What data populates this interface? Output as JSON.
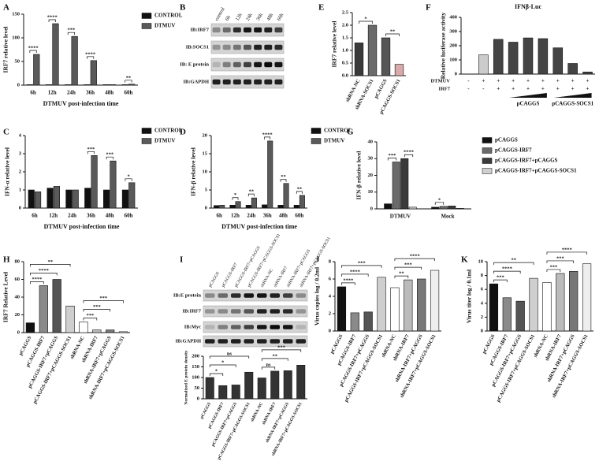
{
  "panel_letters": [
    "A",
    "B",
    "C",
    "D",
    "E",
    "F",
    "G",
    "H",
    "I",
    "J",
    "K"
  ],
  "blots": [
    {
      "columns": [
        "control",
        "6h",
        "12h",
        "24h",
        "36h",
        "48h",
        "60h"
      ],
      "rows": [
        "IB:IRF7",
        "IB:SOCS1",
        "IB: E protein",
        "IB:GAPDH"
      ]
    },
    {
      "columns": [
        "pCAGGS",
        "pCAGGS-IRF7",
        "pCAGGS-IRF7+pCAGGS",
        "pCAGGS-IRF7+pCAGGS-SOCS1",
        "shRNA-NC",
        "shRNA-IRF7",
        "shRNA-IRF7+pCAGGS",
        "shRNA-IRF7+pCAGGS-SOCS1"
      ],
      "rows": [
        "IB:E protein",
        "IB:IRF7",
        "IB:Myc",
        "IB:GAPDH"
      ]
    }
  ],
  "chart_data": [
    {
      "type": "bar",
      "ylabel": "IRF7  relative level",
      "xlabel": "DTMUV post-infection time",
      "categories": [
        "6h",
        "12h",
        "24h",
        "36h",
        "48h",
        "60h"
      ],
      "series": [
        {
          "name": "CONTROL",
          "color": "#111111",
          "values": [
            1,
            1,
            1,
            1,
            1,
            1
          ]
        },
        {
          "name": "DTMUV",
          "color": "#5a5a5a",
          "values": [
            65,
            130,
            103,
            52,
            1,
            2
          ]
        }
      ],
      "ylim": [
        0,
        150
      ],
      "yticks": [
        0,
        50,
        100,
        150
      ],
      "brackets": [
        {
          "text": "****",
          "from": 0,
          "to": 1
        },
        {
          "text": "****",
          "from": 2,
          "to": 3
        },
        {
          "text": "***",
          "from": 4,
          "to": 5
        },
        {
          "text": "****",
          "from": 6,
          "to": 7
        },
        {
          "text": "**",
          "from": 10,
          "to": 11
        }
      ]
    },
    {
      "type": "bar",
      "ylabel": "IRF7 relative level",
      "categories": [
        "shRNA-NC",
        "shRNA-SOCS1",
        "pCAGGS",
        "pCAGGS-SOCS1"
      ],
      "values": [
        1.3,
        2.0,
        1.5,
        0.45
      ],
      "colors": [
        "#3a3a3a",
        "#6a6a6a",
        "#555555",
        "#d8a9a9"
      ],
      "ylim": [
        0,
        2.5
      ],
      "yticks": [
        {
          "value": 0,
          "label": "0.0"
        },
        0.5,
        {
          "value": 1,
          "label": "1.0"
        },
        1.5,
        {
          "value": 2,
          "label": "2.0"
        },
        2.5
      ],
      "brackets": [
        {
          "text": "*",
          "from": 0,
          "to": 1
        },
        {
          "text": "**",
          "from": 2,
          "to": 3
        }
      ]
    },
    {
      "type": "bar",
      "title": "IFNβ-Luc",
      "ylabel": "Relative luciferase activity",
      "values": [
        0,
        135,
        245,
        225,
        255,
        250,
        185,
        75,
        15
      ],
      "colors": [
        "#cccccc",
        "#cccccc",
        "#444444",
        "#444444",
        "#444444",
        "#444444",
        "#444444",
        "#444444",
        "#444444"
      ],
      "ylim": [
        0,
        400
      ],
      "yticks": [
        0,
        100,
        200,
        300,
        400
      ],
      "rows": [
        {
          "name": "DTMUV",
          "signs": [
            "-",
            "+",
            "+",
            "+",
            "+",
            "+",
            "+",
            "+",
            "+"
          ]
        },
        {
          "name": "IRF7",
          "signs": [
            "-",
            "-",
            "+",
            "+",
            "+",
            "+",
            "+",
            "+",
            "+"
          ]
        }
      ],
      "groups": [
        {
          "label": "pCAGGS",
          "from": 3,
          "to": 5
        },
        {
          "label": "pCAGGS-SOCS1",
          "from": 6,
          "to": 8
        }
      ]
    },
    {
      "type": "bar",
      "ylabel": "IFN-α relative level",
      "xlabel": "DTMUV post-infection time",
      "categories": [
        "6h",
        "12h",
        "24h",
        "36h",
        "48h",
        "60h"
      ],
      "series": [
        {
          "name": "CONTROL",
          "color": "#111111",
          "values": [
            1.0,
            1.1,
            1.0,
            1.1,
            1.0,
            1.0
          ]
        },
        {
          "name": "DTMUV",
          "color": "#5a5a5a",
          "values": [
            0.9,
            1.2,
            1.0,
            2.9,
            2.6,
            1.4
          ]
        }
      ],
      "ylim": [
        0,
        4
      ],
      "yticks": [
        0,
        1,
        2,
        3,
        4
      ],
      "brackets": [
        {
          "text": "***",
          "from": 6,
          "to": 7
        },
        {
          "text": "***",
          "from": 8,
          "to": 9
        },
        {
          "text": "*",
          "from": 10,
          "to": 11
        }
      ]
    },
    {
      "type": "bar",
      "ylabel": "IFN-β relative level",
      "xlabel": "DTMUV post-infection time",
      "categories": [
        "6h",
        "12h",
        "24h",
        "36h",
        "48h",
        "60h"
      ],
      "series": [
        {
          "name": "CONTROL",
          "color": "#111111",
          "values": [
            0.7,
            0.8,
            0.8,
            0.9,
            0.8,
            0.8
          ]
        },
        {
          "name": "DTMUV",
          "color": "#5a5a5a",
          "values": [
            0.8,
            1.8,
            2.8,
            18.5,
            6.8,
            3.5
          ]
        }
      ],
      "ylim": [
        0,
        20
      ],
      "yticks": [
        0,
        5,
        10,
        15,
        20
      ],
      "brackets": [
        {
          "text": "*",
          "from": 2,
          "to": 3
        },
        {
          "text": "**",
          "from": 4,
          "to": 5
        },
        {
          "text": "****",
          "from": 6,
          "to": 7
        },
        {
          "text": "**",
          "from": 8,
          "to": 9
        },
        {
          "text": "**",
          "from": 10,
          "to": 11
        }
      ]
    },
    {
      "type": "bar",
      "ylabel": "IFN-β relative level",
      "categories": [
        "DTMUV",
        "Mock"
      ],
      "series": [
        {
          "name": "pCAGGS",
          "color": "#111111",
          "values": [
            3,
            1
          ]
        },
        {
          "name": "pCAGGS-IRF7",
          "color": "#6a6a6a",
          "values": [
            28,
            1.5
          ]
        },
        {
          "name": "pCAGGS-IRF7+pCAGGS",
          "color": "#3a3a3a",
          "values": [
            30,
            1.7
          ]
        },
        {
          "name": "pCAGGS-IRF7+pCAGGS-SOCS1",
          "color": "#d0d0d0",
          "values": [
            1,
            0.3
          ]
        }
      ],
      "ylim": [
        0,
        40
      ],
      "yticks": [
        0,
        10,
        20,
        30,
        40
      ],
      "brackets": [
        {
          "text": "***",
          "from": 0,
          "to": 1
        },
        {
          "text": "****",
          "from": 2,
          "to": 3
        },
        {
          "text": "*",
          "from": 4,
          "to": 5
        }
      ]
    },
    {
      "type": "bar",
      "ylabel": "IRF7 Relative Level",
      "categories": [
        "pCAGGS",
        "pCAGGS-IRF7",
        "pCAGGS-IRF7+pCAGGS",
        "pCAGGS-IRF7+pCAGGS-SOCS1",
        "shRNA-NC",
        "shRNA-IRF7",
        "shRNA-IRF7+pCAGGS",
        "shRNA-IRF7+pCAGGS-SOCS1"
      ],
      "values": [
        11,
        53,
        60,
        30,
        12,
        3,
        3,
        1
      ],
      "colors": [
        "#111111",
        "#8a8a8a",
        "#555555",
        "#cfcfcf",
        "#ffffff",
        "#bbbbbb",
        "#777777",
        "#eeeeee"
      ],
      "ylim": [
        0,
        80
      ],
      "yticks": [
        0,
        20,
        40,
        60,
        80
      ],
      "brackets": [
        {
          "text": "****",
          "from": 0,
          "to": 1
        },
        {
          "text": "****",
          "from": 0,
          "to": 2
        },
        {
          "text": "**",
          "from": 0,
          "to": 3
        },
        {
          "text": "***",
          "from": 4,
          "to": 5
        },
        {
          "text": "***",
          "from": 4,
          "to": 6
        },
        {
          "text": "***",
          "from": 4,
          "to": 7
        }
      ]
    },
    {
      "type": "bar",
      "ylabel": "Normalized E protein density",
      "categories": [
        "pCAGGS",
        "pCAGGS-IRF7",
        "pCAGGS-IRF7+pCAGGS",
        "pCAGGS-IRF7+pCAGGS-SOCS1",
        "shRNA-NC",
        "shRNA-IRF7",
        "shRNA-IRF7+pCAGGS",
        "shRNA-IRF7+pCAGGS-SOCS1"
      ],
      "values": [
        100,
        62,
        65,
        125,
        98,
        130,
        132,
        158
      ],
      "color": "#333333",
      "ylim": [
        0,
        200
      ],
      "yticks": [
        0,
        50,
        100,
        150,
        200
      ],
      "brackets": [
        {
          "text": "*",
          "from": 0,
          "to": 1
        },
        {
          "text": "*",
          "from": 0,
          "to": 2
        },
        {
          "text": "ns",
          "from": 0,
          "to": 3
        },
        {
          "text": "ns",
          "from": 4,
          "to": 5
        },
        {
          "text": "**",
          "from": 4,
          "to": 6
        },
        {
          "text": "***",
          "from": 4,
          "to": 7
        }
      ]
    },
    {
      "type": "bar",
      "ylabel": "Virus copies log / 0.2ml",
      "categories": [
        "pCAGGS",
        "pCAGGS-IRF7",
        "pCAGGS-IRF7+pCAGGS",
        "pCAGGS-IRF7+pCAGGS-SOCS1",
        "shRNA-NC",
        "shRNA-IRF7",
        "shRNA-IRF7+pCAGGS",
        "shRNA-IRF7+pCAGGS-SOCS1"
      ],
      "values": [
        5.1,
        2.1,
        2.2,
        6.2,
        5.0,
        5.9,
        6.0,
        7.0
      ],
      "colors": [
        "#111111",
        "#8a8a8a",
        "#555555",
        "#cfcfcf",
        "#ffffff",
        "#bbbbbb",
        "#777777",
        "#eeeeee"
      ],
      "ylim": [
        0,
        8
      ],
      "yticks": [
        0,
        2,
        4,
        6,
        8
      ],
      "brackets": [
        {
          "text": "****",
          "from": 0,
          "to": 1
        },
        {
          "text": "****",
          "from": 0,
          "to": 2
        },
        {
          "text": "***",
          "from": 0,
          "to": 3
        },
        {
          "text": "**",
          "from": 4,
          "to": 5
        },
        {
          "text": "***",
          "from": 4,
          "to": 6
        },
        {
          "text": "****",
          "from": 4,
          "to": 7
        }
      ]
    },
    {
      "type": "bar",
      "ylabel": "Virus titer log / 0.1ml",
      "categories": [
        "pCAGGS",
        "pCAGGS-IRF7",
        "pCAGGS-IRF7+pCAGGS",
        "pCAGGS-IRF7+pCAGGS-SOCS1",
        "shRNA-NC",
        "shRNA-IRF7",
        "shRNA-IRF7+pCAGGS",
        "shRNA-IRF7+pCAGGS-SOCS1"
      ],
      "values": [
        6.8,
        4.8,
        4.3,
        7.6,
        7.0,
        8.3,
        8.6,
        9.7
      ],
      "colors": [
        "#111111",
        "#8a8a8a",
        "#555555",
        "#cfcfcf",
        "#ffffff",
        "#bbbbbb",
        "#777777",
        "#eeeeee"
      ],
      "ylim": [
        0,
        10
      ],
      "yticks": [
        0,
        2,
        4,
        6,
        8,
        10
      ],
      "brackets": [
        {
          "text": "***",
          "from": 0,
          "to": 1
        },
        {
          "text": "****",
          "from": 0,
          "to": 2
        },
        {
          "text": "**",
          "from": 0,
          "to": 3
        },
        {
          "text": "***",
          "from": 4,
          "to": 5
        },
        {
          "text": "***",
          "from": 4,
          "to": 6
        },
        {
          "text": "****",
          "from": 4,
          "to": 7
        }
      ]
    }
  ]
}
